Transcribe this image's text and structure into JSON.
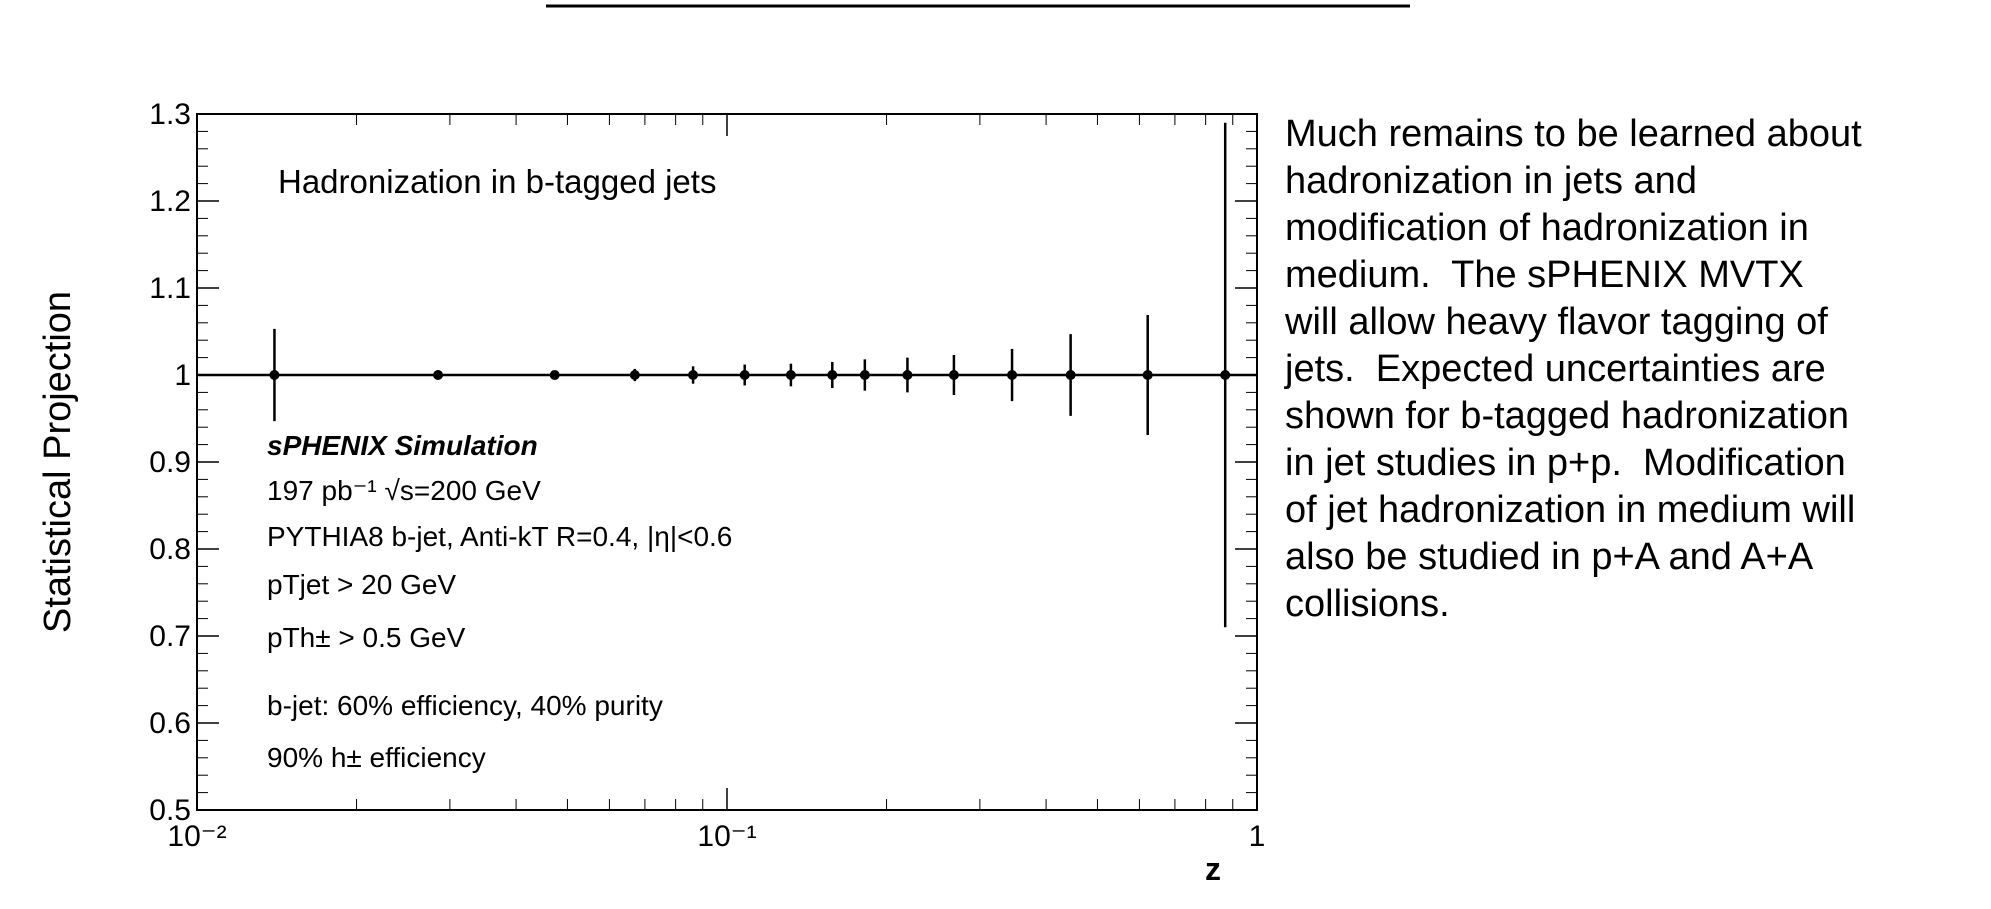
{
  "chart_data": {
    "type": "errorbar",
    "ylabel": "Statistical Projection",
    "xlabel": "z",
    "xscale": "log",
    "xlim": [
      0.01,
      1
    ],
    "xticks": [
      {
        "value": 0.01,
        "label": "10⁻²"
      },
      {
        "value": 0.1,
        "label": "10⁻¹"
      },
      1
    ],
    "ylim": [
      0.5,
      1.3
    ],
    "yticks": [
      0.5,
      0.6,
      0.7,
      0.8,
      0.9,
      1,
      1.1,
      1.2,
      1.3
    ],
    "annotations": [
      "Hadronization in b-tagged jets",
      "sPHENIX Simulation",
      "197 pb⁻¹ √s=200 GeV",
      "PYTHIA8 b-jet, Anti-kT R=0.4, |η|<0.6",
      "pTjet > 20 GeV",
      "pTh± > 0.5 GeV",
      "b-jet: 60% efficiency, 40% purity",
      "90% h± efficiency"
    ],
    "series": [
      {
        "color": "#000000",
        "x": [
          0.014,
          0.0285,
          0.0473,
          0.067,
          0.0863,
          0.108,
          0.132,
          0.158,
          0.182,
          0.219,
          0.268,
          0.345,
          0.445,
          0.622,
          0.871
        ],
        "values": [
          1,
          1,
          1,
          1,
          1,
          1,
          1,
          1,
          1,
          1,
          1,
          1,
          1,
          1,
          1
        ],
        "errors": [
          0.053,
          0.005,
          0.005,
          0.007,
          0.01,
          0.012,
          0.013,
          0.015,
          0.018,
          0.02,
          0.023,
          0.03,
          0.047,
          0.069,
          0.29
        ]
      }
    ]
  },
  "text": {
    "lines": [
      "Much remains to be learned about",
      "hadronization in jets and",
      "modification of hadronization in",
      "medium.  The sPHENIX MVTX",
      "will allow heavy flavor tagging of",
      "jets.  Expected uncertainties are",
      "shown for b-tagged hadronization",
      "in jet studies in p+p.  Modification",
      "of jet hadronization in medium will",
      "also be studied in p+A and A+A",
      "collisions."
    ]
  }
}
